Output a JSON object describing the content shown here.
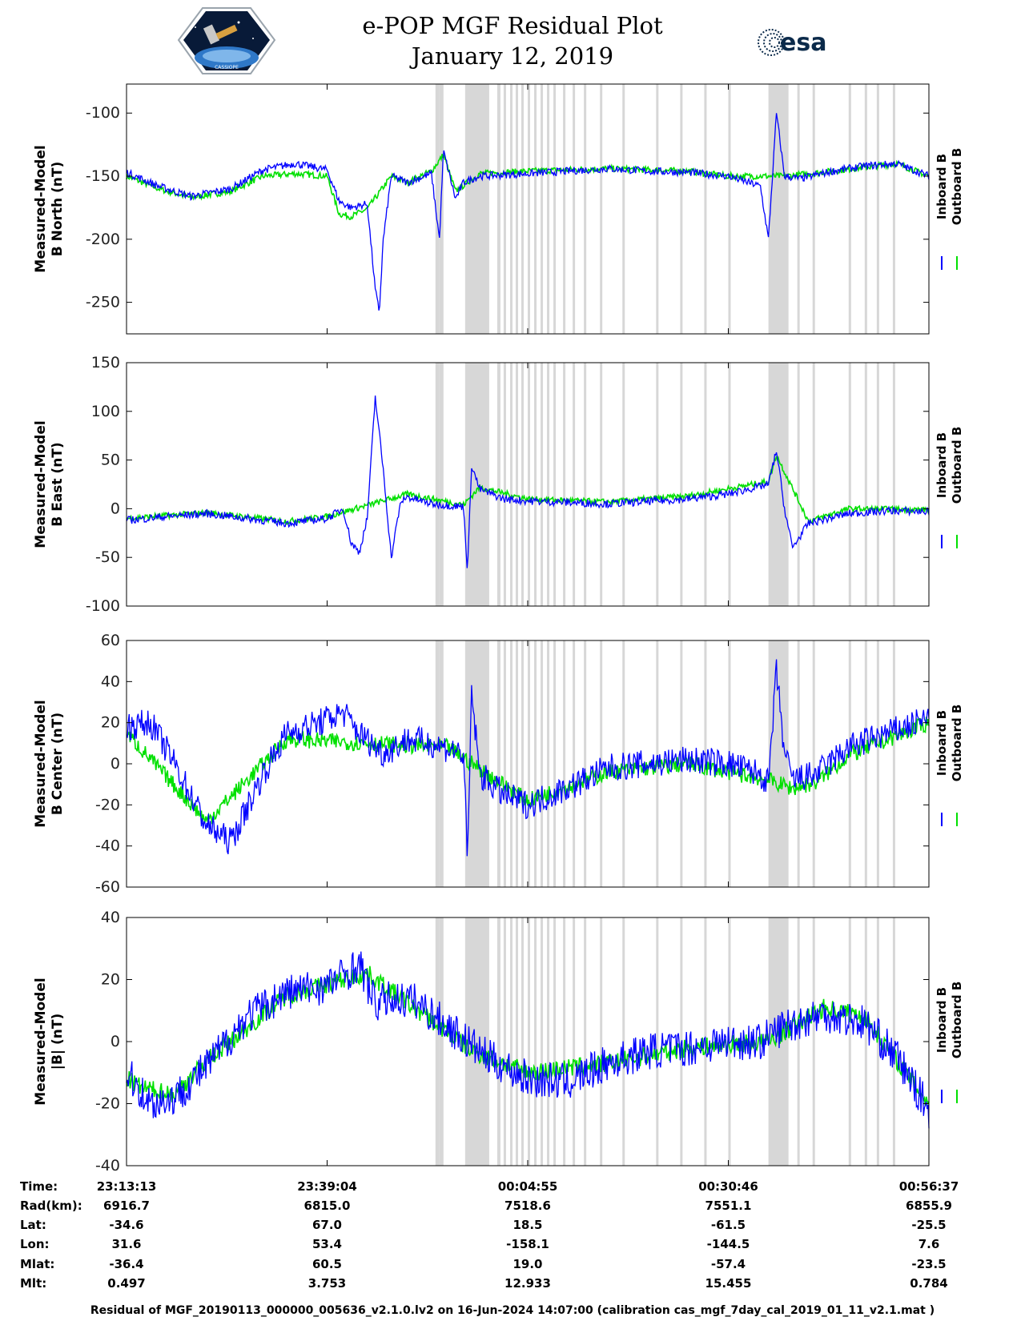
{
  "title": {
    "line1": "e-POP MGF Residual Plot",
    "line2": "January 12, 2019"
  },
  "logos": {
    "left": "cassiope-mission-logo",
    "left_text": "CASSIOPE",
    "right": "esa-logo",
    "right_text": "esa"
  },
  "colors": {
    "inboard": "#0000ff",
    "outboard": "#00e000",
    "gaps": "#d7d7d7",
    "axis": "#000000"
  },
  "chart_data": [
    {
      "type": "line",
      "ylabel_line1": "Measured-Model",
      "ylabel_line2": "B North (nT)",
      "ylim": [
        -275,
        -77
      ],
      "yticks": [
        -100,
        -150,
        -200,
        -250
      ],
      "legend": [
        "Inboard B",
        "Outboard B"
      ],
      "series": [
        {
          "name": "Inboard B",
          "x": [
            0,
            0.04,
            0.08,
            0.13,
            0.17,
            0.21,
            0.25,
            0.265,
            0.28,
            0.3,
            0.31,
            0.315,
            0.32,
            0.33,
            0.35,
            0.38,
            0.39,
            0.395,
            0.41,
            0.42,
            0.44,
            0.5,
            0.55,
            0.6,
            0.65,
            0.7,
            0.75,
            0.79,
            0.8,
            0.81,
            0.82,
            0.84,
            0.88,
            0.92,
            0.96,
            1.0
          ],
          "y": [
            -147,
            -158,
            -166,
            -160,
            -145,
            -140,
            -145,
            -170,
            -175,
            -172,
            -240,
            -258,
            -200,
            -150,
            -155,
            -148,
            -200,
            -130,
            -168,
            -155,
            -150,
            -148,
            -146,
            -144,
            -146,
            -147,
            -150,
            -158,
            -200,
            -100,
            -150,
            -152,
            -146,
            -142,
            -140,
            -150
          ]
        },
        {
          "name": "Outboard B",
          "x": [
            0,
            0.04,
            0.08,
            0.13,
            0.17,
            0.21,
            0.25,
            0.265,
            0.28,
            0.3,
            0.33,
            0.35,
            0.38,
            0.395,
            0.41,
            0.44,
            0.5,
            0.6,
            0.7,
            0.75,
            0.82,
            0.88,
            0.96,
            1.0
          ],
          "y": [
            -150,
            -160,
            -167,
            -162,
            -150,
            -148,
            -150,
            -180,
            -182,
            -176,
            -150,
            -155,
            -146,
            -133,
            -162,
            -148,
            -146,
            -144,
            -146,
            -150,
            -150,
            -146,
            -140,
            -150
          ]
        }
      ],
      "noise": [
        3,
        2.5
      ]
    },
    {
      "type": "line",
      "ylabel_line1": "Measured-Model",
      "ylabel_line2": "B East (nT)",
      "ylim": [
        -100,
        150
      ],
      "yticks": [
        150,
        100,
        50,
        0,
        -50,
        -100
      ],
      "legend": [
        "Inboard B",
        "Outboard B"
      ],
      "series": [
        {
          "name": "Inboard B",
          "x": [
            0,
            0.05,
            0.1,
            0.15,
            0.2,
            0.25,
            0.27,
            0.28,
            0.29,
            0.3,
            0.31,
            0.32,
            0.33,
            0.34,
            0.345,
            0.35,
            0.38,
            0.42,
            0.425,
            0.43,
            0.44,
            0.47,
            0.5,
            0.6,
            0.7,
            0.75,
            0.8,
            0.81,
            0.82,
            0.83,
            0.85,
            0.9,
            0.95,
            1.0
          ],
          "y": [
            -12,
            -8,
            -5,
            -10,
            -15,
            -10,
            0,
            -35,
            -45,
            -10,
            115,
            40,
            -50,
            0,
            10,
            12,
            5,
            2,
            -65,
            45,
            20,
            10,
            8,
            5,
            10,
            15,
            25,
            60,
            0,
            -40,
            -15,
            -5,
            -2,
            -3
          ]
        },
        {
          "name": "Outboard B",
          "x": [
            0,
            0.05,
            0.1,
            0.2,
            0.25,
            0.35,
            0.42,
            0.44,
            0.5,
            0.6,
            0.7,
            0.8,
            0.81,
            0.85,
            0.9,
            1.0
          ],
          "y": [
            -10,
            -7,
            -4,
            -13,
            -8,
            15,
            4,
            22,
            10,
            7,
            13,
            28,
            55,
            -13,
            0,
            -1
          ]
        }
      ],
      "noise": [
        4,
        3
      ]
    },
    {
      "type": "line",
      "ylabel_line1": "Measured-Model",
      "ylabel_line2": "B Center (nT)",
      "ylim": [
        -60,
        60
      ],
      "yticks": [
        60,
        40,
        20,
        0,
        -20,
        -40,
        -60
      ],
      "legend": [
        "Inboard B",
        "Outboard B"
      ],
      "series": [
        {
          "name": "Inboard B",
          "x": [
            0,
            0.03,
            0.06,
            0.1,
            0.13,
            0.17,
            0.2,
            0.24,
            0.27,
            0.29,
            0.32,
            0.35,
            0.38,
            0.42,
            0.425,
            0.43,
            0.44,
            0.47,
            0.5,
            0.53,
            0.57,
            0.6,
            0.65,
            0.7,
            0.75,
            0.79,
            0.8,
            0.81,
            0.82,
            0.83,
            0.86,
            0.9,
            0.95,
            1.0
          ],
          "y": [
            18,
            20,
            0,
            -30,
            -38,
            -5,
            15,
            20,
            25,
            15,
            5,
            12,
            10,
            5,
            -50,
            35,
            -5,
            -15,
            -20,
            -15,
            -8,
            -2,
            0,
            2,
            0,
            -5,
            -10,
            45,
            5,
            -8,
            -5,
            8,
            15,
            22
          ]
        },
        {
          "name": "Outboard B",
          "x": [
            0,
            0.1,
            0.2,
            0.3,
            0.4,
            0.5,
            0.6,
            0.7,
            0.8,
            0.83,
            0.86,
            0.9,
            0.95,
            1.0
          ],
          "y": [
            15,
            -28,
            12,
            10,
            8,
            -18,
            -4,
            0,
            -8,
            -12,
            -9,
            4,
            12,
            20
          ]
        }
      ],
      "noise": [
        7,
        4
      ]
    },
    {
      "type": "line",
      "ylabel_line1": "Measured-Model",
      "ylabel_line2": "|B| (nT)",
      "ylim": [
        -40,
        40
      ],
      "yticks": [
        40,
        20,
        0,
        -20,
        -40
      ],
      "legend": [
        "Inboard B",
        "Outboard B"
      ],
      "series": [
        {
          "name": "Inboard B",
          "x": [
            0,
            0.03,
            0.06,
            0.1,
            0.15,
            0.2,
            0.25,
            0.29,
            0.31,
            0.33,
            0.36,
            0.4,
            0.45,
            0.5,
            0.55,
            0.6,
            0.65,
            0.7,
            0.75,
            0.79,
            0.82,
            0.87,
            0.92,
            0.96,
            1.0
          ],
          "y": [
            -10,
            -20,
            -18,
            -8,
            8,
            16,
            18,
            25,
            12,
            14,
            13,
            5,
            -5,
            -12,
            -13,
            -7,
            -3,
            -2,
            0,
            0,
            5,
            9,
            6,
            -5,
            -22
          ]
        },
        {
          "name": "Outboard B",
          "x": [
            0,
            0.02,
            0.06,
            0.1,
            0.13,
            0.2,
            0.3,
            0.4,
            0.43,
            0.46,
            0.5,
            0.6,
            0.7,
            0.8,
            0.87,
            0.92,
            1.0
          ],
          "y": [
            -12,
            -15,
            -17,
            -6,
            0,
            15,
            22,
            3,
            -3,
            -6,
            -10,
            -7,
            -2,
            0,
            11,
            8,
            -20
          ]
        }
      ],
      "noise": [
        6,
        3
      ]
    }
  ],
  "gap_bands": [
    [
      0.385,
      0.39
    ],
    [
      0.39,
      0.395
    ],
    [
      0.422,
      0.452
    ],
    [
      0.462,
      0.466
    ],
    [
      0.47,
      0.473
    ],
    [
      0.478,
      0.481
    ],
    [
      0.485,
      0.488
    ],
    [
      0.492,
      0.495
    ],
    [
      0.5,
      0.503
    ],
    [
      0.508,
      0.511
    ],
    [
      0.516,
      0.519
    ],
    [
      0.524,
      0.527
    ],
    [
      0.532,
      0.535
    ],
    [
      0.544,
      0.547
    ],
    [
      0.556,
      0.559
    ],
    [
      0.57,
      0.573
    ],
    [
      0.59,
      0.593
    ],
    [
      0.618,
      0.621
    ],
    [
      0.66,
      0.663
    ],
    [
      0.69,
      0.693
    ],
    [
      0.72,
      0.723
    ],
    [
      0.75,
      0.753
    ],
    [
      0.8,
      0.825
    ],
    [
      0.836,
      0.839
    ],
    [
      0.855,
      0.858
    ],
    [
      0.9,
      0.903
    ],
    [
      0.92,
      0.923
    ],
    [
      0.935,
      0.938
    ],
    [
      0.955,
      0.958
    ]
  ],
  "x_ticks_frac": [
    0,
    0.25,
    0.5,
    0.75,
    1.0
  ],
  "table": {
    "row_labels": [
      "Time:",
      "Rad(km):",
      "Lat:",
      "Lon:",
      "Mlat:",
      "Mlt:"
    ],
    "columns": [
      [
        "23:13:13",
        "6916.7",
        "-34.6",
        "31.6",
        "-36.4",
        "0.497"
      ],
      [
        "23:39:04",
        "6815.0",
        "67.0",
        "53.4",
        "60.5",
        "3.753"
      ],
      [
        "00:04:55",
        "7518.6",
        "18.5",
        "-158.1",
        "19.0",
        "12.933"
      ],
      [
        "00:30:46",
        "7551.1",
        "-61.5",
        "-144.5",
        "-57.4",
        "15.455"
      ],
      [
        "00:56:37",
        "6855.9",
        "-25.5",
        "7.6",
        "-23.5",
        "0.784"
      ]
    ]
  },
  "footer": "Residual of MGF_20190113_000000_005636_v2.1.0.lv2 on 16-Jun-2024 14:07:00 (calibration cas_mgf_7day_cal_2019_01_11_v2.1.mat )"
}
